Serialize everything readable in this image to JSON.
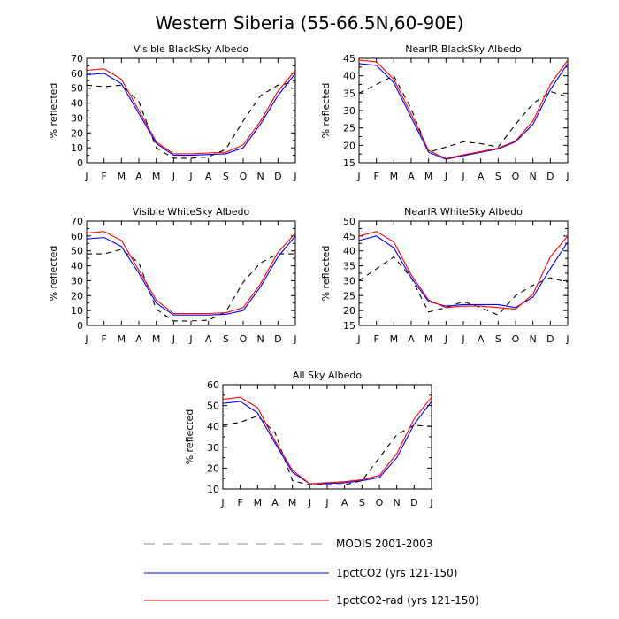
{
  "title": "Western Siberia (55-66.5N,60-90E)",
  "legend": {
    "items": [
      {
        "label": "MODIS 2001-2003",
        "color": "#000000",
        "style": "dashed"
      },
      {
        "label": "1pctCO2 (yrs 121-150)",
        "color": "#0000ff",
        "style": "solid"
      },
      {
        "label": "1pctCO2-rad (yrs 121-150)",
        "color": "#ff0000",
        "style": "solid"
      }
    ]
  },
  "colors": {
    "modis": "#000000",
    "pctco2": "#0000ff",
    "pctco2_rad": "#ff0000"
  },
  "chart_data": [
    {
      "type": "line",
      "title": "Visible BlackSky Albedo",
      "ylabel": "% reflected",
      "ylim": [
        0,
        70
      ],
      "yticks": [
        0,
        10,
        20,
        30,
        40,
        50,
        60,
        70
      ],
      "categories": [
        "J",
        "F",
        "M",
        "A",
        "M",
        "J",
        "J",
        "A",
        "S",
        "O",
        "N",
        "D",
        "J"
      ],
      "series": [
        {
          "name": "MODIS 2001-2003",
          "values": [
            52,
            51,
            52,
            41,
            10,
            3,
            3,
            4,
            9,
            28,
            45,
            52,
            54
          ]
        },
        {
          "name": "1pctCO2 (yrs 121-150)",
          "values": [
            59,
            60,
            53,
            33,
            13,
            5,
            5,
            5.5,
            6,
            10,
            26,
            45,
            60
          ]
        },
        {
          "name": "1pctCO2-rad (yrs 121-150)",
          "values": [
            62,
            63,
            56,
            35,
            14,
            6,
            6,
            6.5,
            7,
            12,
            28,
            48,
            62
          ]
        }
      ]
    },
    {
      "type": "line",
      "title": "NearIR BlackSky Albedo",
      "ylabel": "% reflected",
      "ylim": [
        15,
        45
      ],
      "yticks": [
        15,
        20,
        25,
        30,
        35,
        40,
        45
      ],
      "categories": [
        "J",
        "F",
        "M",
        "A",
        "M",
        "J",
        "J",
        "A",
        "S",
        "O",
        "N",
        "D",
        "J"
      ],
      "series": [
        {
          "name": "MODIS 2001-2003",
          "values": [
            35,
            37.5,
            40,
            30.5,
            18,
            19.5,
            21,
            20.5,
            19.5,
            26,
            32,
            35.5,
            34
          ]
        },
        {
          "name": "1pctCO2 (yrs 121-150)",
          "values": [
            43.5,
            43,
            38,
            28,
            18,
            16,
            17,
            18,
            19,
            21,
            26,
            36,
            43.5
          ]
        },
        {
          "name": "1pctCO2-rad (yrs 121-150)",
          "values": [
            44.5,
            44,
            39,
            29,
            18.5,
            16.2,
            17.3,
            18.2,
            19.2,
            21.2,
            27,
            37.5,
            44.5
          ]
        }
      ]
    },
    {
      "type": "line",
      "title": "Visible WhiteSky Albedo",
      "ylabel": "% reflected",
      "ylim": [
        0,
        70
      ],
      "yticks": [
        0,
        10,
        20,
        30,
        40,
        50,
        60,
        70
      ],
      "categories": [
        "J",
        "F",
        "M",
        "A",
        "M",
        "J",
        "J",
        "A",
        "S",
        "O",
        "N",
        "D",
        "J"
      ],
      "series": [
        {
          "name": "MODIS 2001-2003",
          "values": [
            48,
            48,
            51,
            42,
            11,
            3,
            3,
            3.5,
            9,
            29,
            42,
            48,
            48
          ]
        },
        {
          "name": "1pctCO2 (yrs 121-150)",
          "values": [
            58,
            59,
            53,
            35,
            15,
            7,
            7,
            7,
            7.5,
            10,
            26,
            46,
            60
          ]
        },
        {
          "name": "1pctCO2-rad (yrs 121-150)",
          "values": [
            62,
            63,
            57,
            37,
            17,
            8,
            8,
            8,
            8.5,
            12,
            28,
            49,
            62
          ]
        }
      ]
    },
    {
      "type": "line",
      "title": "NearIR WhiteSky Albedo",
      "ylabel": "% reflected",
      "ylim": [
        15,
        50
      ],
      "yticks": [
        15,
        20,
        25,
        30,
        35,
        40,
        45,
        50
      ],
      "categories": [
        "J",
        "F",
        "M",
        "A",
        "M",
        "J",
        "J",
        "A",
        "S",
        "O",
        "N",
        "D",
        "J"
      ],
      "series": [
        {
          "name": "MODIS 2001-2003",
          "values": [
            30,
            34,
            38,
            31,
            19.5,
            21,
            23,
            21,
            18.5,
            25,
            28.5,
            31,
            29.5
          ]
        },
        {
          "name": "1pctCO2 (yrs 121-150)",
          "values": [
            43.5,
            45,
            41,
            31,
            23,
            21.5,
            22,
            22,
            22,
            21,
            24.5,
            34,
            43
          ]
        },
        {
          "name": "1pctCO2-rad (yrs 121-150)",
          "values": [
            45,
            46.5,
            43,
            32,
            23.5,
            21,
            21.5,
            21.5,
            21,
            20.5,
            25.5,
            38,
            45
          ]
        }
      ]
    },
    {
      "type": "line",
      "title": "All Sky Albedo",
      "ylabel": "% reflected",
      "ylim": [
        10,
        60
      ],
      "yticks": [
        10,
        20,
        30,
        40,
        50,
        60
      ],
      "categories": [
        "J",
        "F",
        "M",
        "A",
        "M",
        "J",
        "J",
        "A",
        "S",
        "O",
        "N",
        "D",
        "J"
      ],
      "series": [
        {
          "name": "MODIS 2001-2003",
          "values": [
            40.5,
            42,
            45,
            37,
            14,
            12,
            12,
            12,
            14,
            25,
            36,
            40.5,
            40
          ]
        },
        {
          "name": "1pctCO2 (yrs 121-150)",
          "values": [
            51,
            52,
            46.5,
            32,
            18,
            12.5,
            12.5,
            13,
            14,
            15.5,
            25,
            41,
            52
          ]
        },
        {
          "name": "1pctCO2-rad (yrs 121-150)",
          "values": [
            53,
            54,
            49,
            33,
            19,
            12.5,
            13,
            13.5,
            14.5,
            16.5,
            27,
            43.5,
            54
          ]
        }
      ]
    }
  ]
}
